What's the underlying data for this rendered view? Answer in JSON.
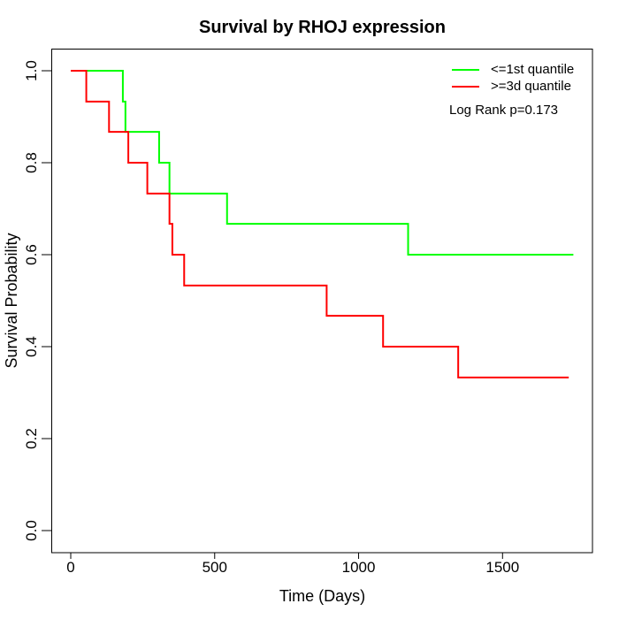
{
  "title": "Survival by RHOJ expression",
  "x_axis": {
    "label": "Time (Days)",
    "ticks": [
      "0",
      "500",
      "1000",
      "1500"
    ],
    "tick_values": [
      0,
      500,
      1000,
      1500
    ]
  },
  "y_axis": {
    "label": "Survival Probability",
    "ticks": [
      "0.0",
      "0.2",
      "0.4",
      "0.6",
      "0.8",
      "1.0"
    ],
    "tick_values": [
      0,
      0.2,
      0.4,
      0.6,
      0.8,
      1.0
    ]
  },
  "legend": {
    "items": [
      {
        "label": "<=1st quantile",
        "color": "#00ff00"
      },
      {
        "label": ">=3d quantile",
        "color": "#ff0000"
      }
    ],
    "note": "Log Rank p=0.173"
  },
  "chart_data": {
    "type": "line",
    "subtype": "kaplan-meier-step",
    "title": "Survival by RHOJ expression",
    "xlabel": "Time (Days)",
    "ylabel": "Survival Probability",
    "xlim": [
      -69,
      1807
    ],
    "ylim": [
      0,
      1.0
    ],
    "x_ticks": [
      0,
      500,
      1000,
      1500
    ],
    "y_ticks": [
      0.0,
      0.2,
      0.4,
      0.6,
      0.8,
      1.0
    ],
    "grid": false,
    "legend_position": "top-right",
    "annotation": "Log Rank p=0.173",
    "series": [
      {
        "name": "<=1st quantile",
        "color": "#00ff00",
        "step": true,
        "points": [
          [
            0,
            1.0
          ],
          [
            181,
            0.933
          ],
          [
            190,
            0.867
          ],
          [
            307,
            0.8
          ],
          [
            343,
            0.733
          ],
          [
            543,
            0.667
          ],
          [
            1172,
            0.6
          ],
          [
            1746,
            0.6
          ]
        ]
      },
      {
        "name": ">=3d quantile",
        "color": "#ff0000",
        "step": true,
        "points": [
          [
            0,
            1.0
          ],
          [
            54,
            0.933
          ],
          [
            133,
            0.867
          ],
          [
            200,
            0.8
          ],
          [
            266,
            0.733
          ],
          [
            343,
            0.667
          ],
          [
            353,
            0.6
          ],
          [
            394,
            0.533
          ],
          [
            889,
            0.467
          ],
          [
            1085,
            0.4
          ],
          [
            1346,
            0.333
          ],
          [
            1730,
            0.333
          ]
        ]
      }
    ]
  }
}
